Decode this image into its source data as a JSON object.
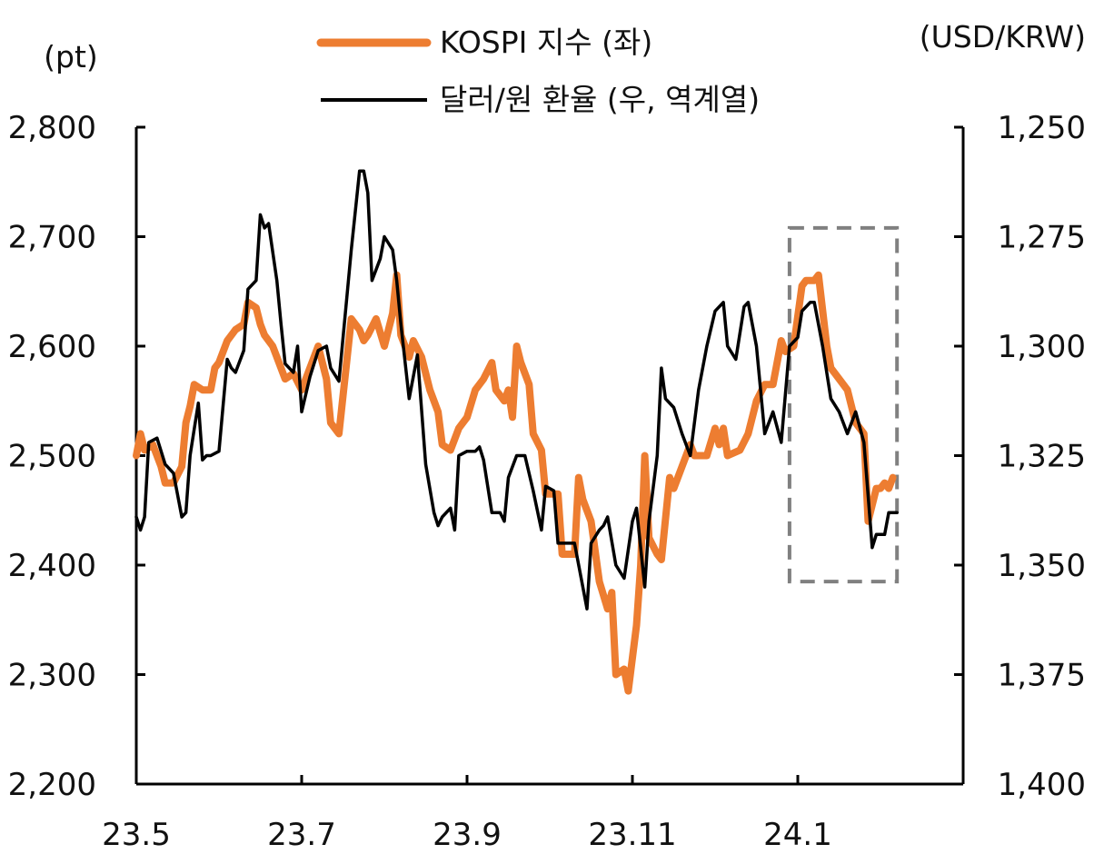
{
  "chart_data": {
    "type": "line",
    "y_unit_left": "(pt)",
    "y_unit_right": "(USD/KRW)",
    "left_axis": {
      "min": 2200,
      "max": 2800,
      "ticks": [
        "2,800",
        "2,700",
        "2,600",
        "2,500",
        "2,400",
        "2,300",
        "2,200"
      ]
    },
    "right_axis": {
      "min": 1250,
      "max": 1400,
      "inverted": true,
      "ticks": [
        "1,250",
        "1,275",
        "1,300",
        "1,325",
        "1,350",
        "1,375",
        "1,400"
      ]
    },
    "x_ticks": [
      "23.5",
      "23.7",
      "23.9",
      "23.11",
      "24.1"
    ],
    "x_range": [
      0,
      10
    ],
    "grid": false,
    "legend_position": "top-center",
    "highlight_box": {
      "x_range": [
        7.9,
        9.2
      ],
      "left_y_range": [
        2385,
        2708
      ]
    },
    "series": [
      {
        "name": "KOSPI 지수 (좌)",
        "axis": "left",
        "color": "#ED7D31",
        "points": [
          [
            0.0,
            2500
          ],
          [
            0.05,
            2520
          ],
          [
            0.1,
            2505
          ],
          [
            0.2,
            2510
          ],
          [
            0.3,
            2490
          ],
          [
            0.35,
            2475
          ],
          [
            0.45,
            2475
          ],
          [
            0.55,
            2490
          ],
          [
            0.6,
            2530
          ],
          [
            0.65,
            2545
          ],
          [
            0.7,
            2565
          ],
          [
            0.8,
            2560
          ],
          [
            0.9,
            2560
          ],
          [
            0.95,
            2580
          ],
          [
            1.0,
            2585
          ],
          [
            1.1,
            2605
          ],
          [
            1.2,
            2615
          ],
          [
            1.3,
            2620
          ],
          [
            1.35,
            2640
          ],
          [
            1.45,
            2635
          ],
          [
            1.5,
            2620
          ],
          [
            1.55,
            2610
          ],
          [
            1.65,
            2600
          ],
          [
            1.7,
            2590
          ],
          [
            1.8,
            2570
          ],
          [
            1.9,
            2575
          ],
          [
            2.0,
            2560
          ],
          [
            2.1,
            2580
          ],
          [
            2.2,
            2600
          ],
          [
            2.3,
            2570
          ],
          [
            2.35,
            2530
          ],
          [
            2.45,
            2520
          ],
          [
            2.55,
            2590
          ],
          [
            2.6,
            2625
          ],
          [
            2.7,
            2615
          ],
          [
            2.75,
            2605
          ],
          [
            2.8,
            2610
          ],
          [
            2.9,
            2625
          ],
          [
            3.0,
            2600
          ],
          [
            3.1,
            2630
          ],
          [
            3.15,
            2665
          ],
          [
            3.2,
            2610
          ],
          [
            3.3,
            2590
          ],
          [
            3.35,
            2605
          ],
          [
            3.45,
            2590
          ],
          [
            3.55,
            2560
          ],
          [
            3.65,
            2540
          ],
          [
            3.7,
            2510
          ],
          [
            3.8,
            2505
          ],
          [
            3.9,
            2525
          ],
          [
            4.0,
            2535
          ],
          [
            4.1,
            2560
          ],
          [
            4.2,
            2570
          ],
          [
            4.3,
            2585
          ],
          [
            4.35,
            2560
          ],
          [
            4.45,
            2550
          ],
          [
            4.5,
            2560
          ],
          [
            4.55,
            2535
          ],
          [
            4.6,
            2600
          ],
          [
            4.65,
            2585
          ],
          [
            4.75,
            2565
          ],
          [
            4.8,
            2520
          ],
          [
            4.9,
            2505
          ],
          [
            4.95,
            2465
          ],
          [
            5.1,
            2465
          ],
          [
            5.15,
            2410
          ],
          [
            5.3,
            2410
          ],
          [
            5.35,
            2480
          ],
          [
            5.4,
            2460
          ],
          [
            5.5,
            2440
          ],
          [
            5.6,
            2385
          ],
          [
            5.7,
            2360
          ],
          [
            5.75,
            2375
          ],
          [
            5.8,
            2300
          ],
          [
            5.9,
            2305
          ],
          [
            5.95,
            2285
          ],
          [
            6.05,
            2345
          ],
          [
            6.1,
            2400
          ],
          [
            6.15,
            2500
          ],
          [
            6.2,
            2425
          ],
          [
            6.3,
            2410
          ],
          [
            6.35,
            2405
          ],
          [
            6.45,
            2480
          ],
          [
            6.5,
            2470
          ],
          [
            6.6,
            2490
          ],
          [
            6.7,
            2510
          ],
          [
            6.75,
            2500
          ],
          [
            6.9,
            2500
          ],
          [
            7.0,
            2525
          ],
          [
            7.05,
            2510
          ],
          [
            7.1,
            2525
          ],
          [
            7.15,
            2500
          ],
          [
            7.3,
            2505
          ],
          [
            7.4,
            2520
          ],
          [
            7.5,
            2550
          ],
          [
            7.6,
            2565
          ],
          [
            7.7,
            2565
          ],
          [
            7.8,
            2605
          ],
          [
            7.85,
            2595
          ],
          [
            7.95,
            2600
          ],
          [
            8.05,
            2655
          ],
          [
            8.1,
            2660
          ],
          [
            8.2,
            2660
          ],
          [
            8.25,
            2665
          ],
          [
            8.35,
            2600
          ],
          [
            8.4,
            2580
          ],
          [
            8.5,
            2570
          ],
          [
            8.6,
            2560
          ],
          [
            8.7,
            2530
          ],
          [
            8.8,
            2520
          ],
          [
            8.85,
            2440
          ],
          [
            8.95,
            2470
          ],
          [
            9.0,
            2470
          ],
          [
            9.05,
            2475
          ],
          [
            9.1,
            2470
          ],
          [
            9.15,
            2480
          ]
        ]
      },
      {
        "name": "달러/원 환율 (우, 역계열)",
        "axis": "right",
        "color": "#000000",
        "points": [
          [
            0.0,
            1339
          ],
          [
            0.05,
            1342
          ],
          [
            0.1,
            1339
          ],
          [
            0.15,
            1322
          ],
          [
            0.25,
            1321
          ],
          [
            0.35,
            1327
          ],
          [
            0.45,
            1329
          ],
          [
            0.55,
            1339
          ],
          [
            0.6,
            1338
          ],
          [
            0.65,
            1325
          ],
          [
            0.7,
            1319
          ],
          [
            0.75,
            1313
          ],
          [
            0.8,
            1326
          ],
          [
            0.85,
            1325
          ],
          [
            0.9,
            1325
          ],
          [
            1.0,
            1324
          ],
          [
            1.1,
            1303
          ],
          [
            1.15,
            1305
          ],
          [
            1.2,
            1306
          ],
          [
            1.3,
            1301
          ],
          [
            1.35,
            1287
          ],
          [
            1.45,
            1285
          ],
          [
            1.5,
            1270
          ],
          [
            1.55,
            1273
          ],
          [
            1.6,
            1272
          ],
          [
            1.7,
            1285
          ],
          [
            1.75,
            1295
          ],
          [
            1.8,
            1304
          ],
          [
            1.9,
            1306
          ],
          [
            1.95,
            1300
          ],
          [
            2.0,
            1315
          ],
          [
            2.1,
            1307
          ],
          [
            2.2,
            1301
          ],
          [
            2.3,
            1300
          ],
          [
            2.35,
            1305
          ],
          [
            2.45,
            1308
          ],
          [
            2.55,
            1288
          ],
          [
            2.6,
            1278
          ],
          [
            2.7,
            1260
          ],
          [
            2.75,
            1260
          ],
          [
            2.8,
            1265
          ],
          [
            2.85,
            1285
          ],
          [
            2.95,
            1280
          ],
          [
            3.0,
            1275
          ],
          [
            3.1,
            1278
          ],
          [
            3.15,
            1285
          ],
          [
            3.2,
            1295
          ],
          [
            3.3,
            1312
          ],
          [
            3.4,
            1302
          ],
          [
            3.5,
            1327
          ],
          [
            3.6,
            1338
          ],
          [
            3.65,
            1341
          ],
          [
            3.7,
            1339
          ],
          [
            3.8,
            1337
          ],
          [
            3.85,
            1342
          ],
          [
            3.9,
            1325
          ],
          [
            4.0,
            1324
          ],
          [
            4.1,
            1324
          ],
          [
            4.15,
            1323
          ],
          [
            4.2,
            1326
          ],
          [
            4.3,
            1338
          ],
          [
            4.4,
            1338
          ],
          [
            4.45,
            1340
          ],
          [
            4.5,
            1330
          ],
          [
            4.6,
            1325
          ],
          [
            4.7,
            1325
          ],
          [
            4.8,
            1333
          ],
          [
            4.9,
            1342
          ],
          [
            4.95,
            1332
          ],
          [
            5.05,
            1333
          ],
          [
            5.1,
            1345
          ],
          [
            5.3,
            1345
          ],
          [
            5.45,
            1360
          ],
          [
            5.5,
            1345
          ],
          [
            5.6,
            1342
          ],
          [
            5.65,
            1341
          ],
          [
            5.7,
            1339
          ],
          [
            5.8,
            1350
          ],
          [
            5.9,
            1353
          ],
          [
            6.0,
            1340
          ],
          [
            6.05,
            1337
          ],
          [
            6.15,
            1355
          ],
          [
            6.2,
            1340
          ],
          [
            6.3,
            1325
          ],
          [
            6.35,
            1305
          ],
          [
            6.4,
            1312
          ],
          [
            6.5,
            1314
          ],
          [
            6.6,
            1320
          ],
          [
            6.7,
            1325
          ],
          [
            6.8,
            1310
          ],
          [
            6.9,
            1300
          ],
          [
            7.0,
            1292
          ],
          [
            7.1,
            1290
          ],
          [
            7.15,
            1300
          ],
          [
            7.25,
            1303
          ],
          [
            7.35,
            1291
          ],
          [
            7.4,
            1290
          ],
          [
            7.5,
            1300
          ],
          [
            7.6,
            1320
          ],
          [
            7.7,
            1315
          ],
          [
            7.8,
            1322
          ],
          [
            7.9,
            1300
          ],
          [
            8.0,
            1298
          ],
          [
            8.05,
            1292
          ],
          [
            8.15,
            1290
          ],
          [
            8.2,
            1290
          ],
          [
            8.3,
            1300
          ],
          [
            8.4,
            1312
          ],
          [
            8.5,
            1315
          ],
          [
            8.6,
            1320
          ],
          [
            8.7,
            1315
          ],
          [
            8.8,
            1322
          ],
          [
            8.9,
            1346
          ],
          [
            8.95,
            1343
          ],
          [
            9.05,
            1343
          ],
          [
            9.1,
            1338
          ],
          [
            9.15,
            1338
          ],
          [
            9.2,
            1338
          ]
        ]
      }
    ]
  }
}
